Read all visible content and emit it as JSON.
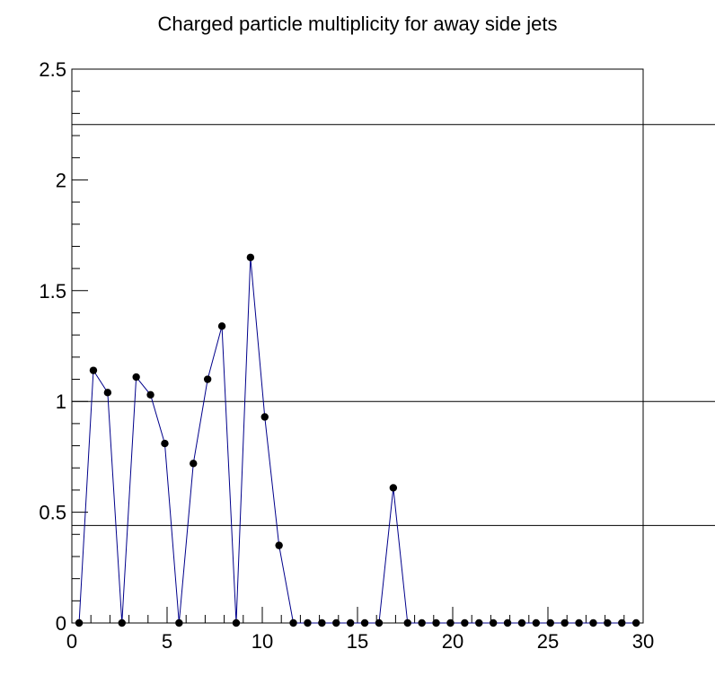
{
  "chart_data": {
    "type": "line",
    "title": "Charged particle multiplicity for away side jets",
    "xlabel": "",
    "ylabel": "",
    "xlim": [
      0,
      30
    ],
    "ylim": [
      0,
      2.5
    ],
    "x_ticks": [
      "0",
      "5",
      "10",
      "15",
      "20",
      "25",
      "30"
    ],
    "y_ticks": [
      "0",
      "0.5",
      "1",
      "1.5",
      "2",
      "2.5"
    ],
    "grid": false,
    "legend": "none",
    "marker": "circle",
    "line_color": "#00008b",
    "marker_color": "#000000",
    "reference_lines_y": [
      0.44,
      1.0,
      2.25
    ],
    "series": [
      {
        "x": [
          0.38,
          1.13,
          1.88,
          2.63,
          3.38,
          4.13,
          4.88,
          5.63,
          6.38,
          7.13,
          7.88,
          8.63,
          9.38,
          10.13,
          10.88,
          11.63,
          12.38,
          13.13,
          13.88,
          14.63,
          15.38,
          16.13,
          16.88,
          17.63,
          18.38,
          19.13,
          19.88,
          20.63,
          21.38,
          22.13,
          22.88,
          23.63,
          24.38,
          25.13,
          25.88,
          26.63,
          27.38,
          28.13,
          28.88,
          29.63
        ],
        "y": [
          0,
          1.14,
          1.04,
          0,
          1.11,
          1.03,
          0.81,
          0,
          0.72,
          1.1,
          1.34,
          0,
          1.65,
          0.93,
          0.35,
          0,
          0,
          0,
          0,
          0,
          0,
          0,
          0.61,
          0,
          0,
          0,
          0,
          0,
          0,
          0,
          0,
          0,
          0,
          0,
          0,
          0,
          0,
          0,
          0,
          0
        ]
      }
    ]
  }
}
